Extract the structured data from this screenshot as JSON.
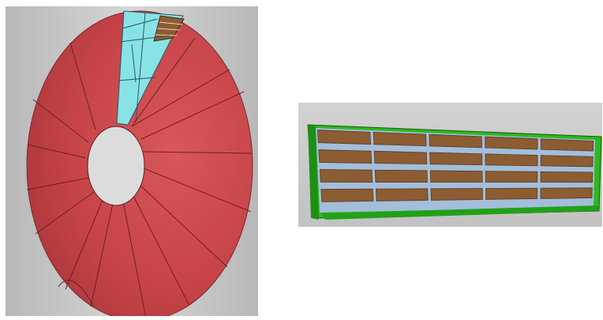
{
  "figure": {
    "panels": [
      {
        "id": "disk",
        "subject": "disk-render"
      },
      {
        "id": "module",
        "subject": "module-render"
      }
    ]
  },
  "colors": {
    "background": "#ffffff",
    "panel_gray": "#c4c4c4",
    "disk_red": "#c64447",
    "disk_red_dark": "#a8353a",
    "cyan": "#88e3e6",
    "wood": "#8c5c33",
    "green": "#2bb91e",
    "gap_blue": "#a3bedb"
  }
}
